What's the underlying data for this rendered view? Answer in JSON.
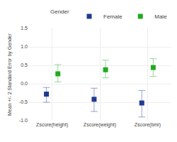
{
  "chart_data": {
    "type": "scatter",
    "categories": [
      "Zscore(height)",
      "Zscore(weight)",
      "Zscore(bmi)"
    ],
    "ylabel": "Mean +/- 2 Standard Error by Gender",
    "legend_title": "Gender",
    "series": [
      {
        "name": "Female",
        "color": "#1f3a8f",
        "marker": "square",
        "values": [
          -0.28,
          -0.42,
          -0.52
        ],
        "ci_low": [
          -0.5,
          -0.75,
          -0.9
        ],
        "ci_high": [
          -0.1,
          -0.12,
          -0.18
        ]
      },
      {
        "name": "Male",
        "color": "#22aa22",
        "marker": "square",
        "values": [
          0.27,
          0.38,
          0.44
        ],
        "ci_low": [
          0.05,
          0.16,
          0.2
        ],
        "ci_high": [
          0.52,
          0.64,
          0.68
        ]
      }
    ],
    "ylim": [
      -1.0,
      1.5
    ],
    "yticks": [
      {
        "value": -1.0,
        "label": "-1.0"
      },
      -0.5,
      {
        "value": 0.0,
        "label": "0.0"
      },
      0.5,
      {
        "value": 1.0,
        "label": "1.0"
      },
      1.5
    ],
    "grid": true,
    "legend": "upper right"
  }
}
